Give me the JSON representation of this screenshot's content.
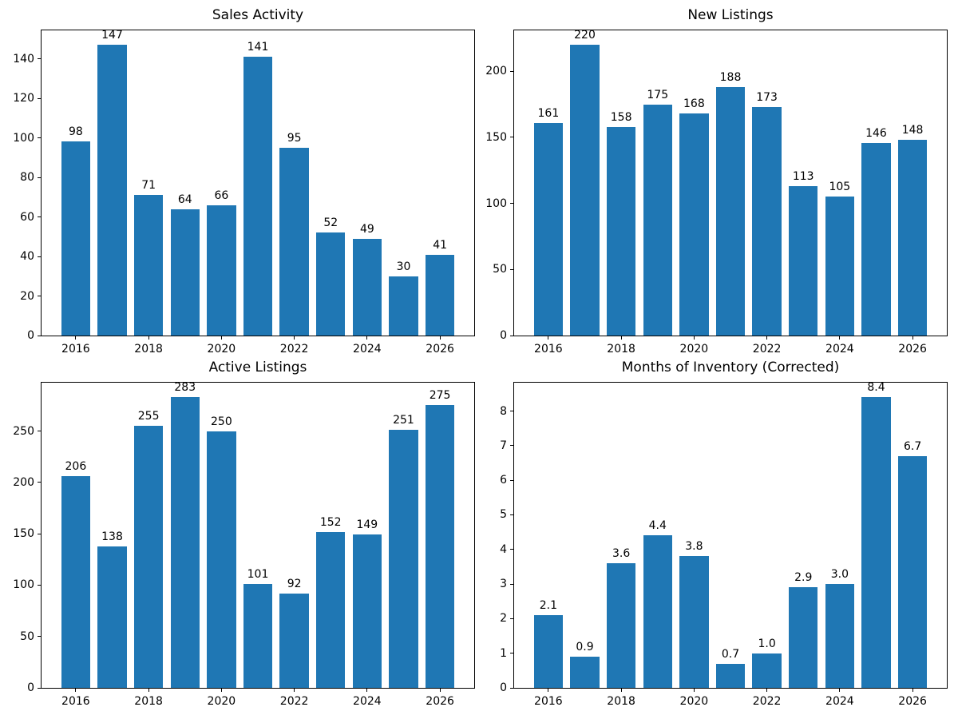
{
  "figure": {
    "background": "#ffffff",
    "bar_color": "#1f77b4",
    "text_color": "#000000"
  },
  "chart_data": [
    {
      "type": "bar",
      "title": "Sales Activity",
      "categories": [
        2016,
        2017,
        2018,
        2019,
        2020,
        2021,
        2022,
        2023,
        2024,
        2025,
        2026
      ],
      "values": [
        98,
        147,
        71,
        64,
        66,
        141,
        95,
        52,
        49,
        30,
        41
      ],
      "bar_labels": [
        "98",
        "147",
        "71",
        "64",
        "66",
        "141",
        "95",
        "52",
        "49",
        "30",
        "41"
      ],
      "bar_width": 0.8,
      "grid": false,
      "xlim": [
        2015.06,
        2026.94
      ],
      "ylim": [
        0,
        154.35
      ],
      "xticks": [
        2016,
        2018,
        2020,
        2022,
        2024,
        2026
      ],
      "yticks": [
        0,
        20,
        40,
        60,
        80,
        100,
        120,
        140
      ]
    },
    {
      "type": "bar",
      "title": "New Listings",
      "categories": [
        2016,
        2017,
        2018,
        2019,
        2020,
        2021,
        2022,
        2023,
        2024,
        2025,
        2026
      ],
      "values": [
        161,
        220,
        158,
        175,
        168,
        188,
        173,
        113,
        105,
        146,
        148
      ],
      "bar_labels": [
        "161",
        "220",
        "158",
        "175",
        "168",
        "188",
        "173",
        "113",
        "105",
        "146",
        "148"
      ],
      "bar_width": 0.8,
      "grid": false,
      "xlim": [
        2015.06,
        2026.94
      ],
      "ylim": [
        0,
        231
      ],
      "xticks": [
        2016,
        2018,
        2020,
        2022,
        2024,
        2026
      ],
      "yticks": [
        0,
        50,
        100,
        150,
        200
      ]
    },
    {
      "type": "bar",
      "title": "Active Listings",
      "categories": [
        2016,
        2017,
        2018,
        2019,
        2020,
        2021,
        2022,
        2023,
        2024,
        2025,
        2026
      ],
      "values": [
        206,
        138,
        255,
        283,
        250,
        101,
        92,
        152,
        149,
        251,
        275
      ],
      "bar_labels": [
        "206",
        "138",
        "255",
        "283",
        "250",
        "101",
        "92",
        "152",
        "149",
        "251",
        "275"
      ],
      "bar_width": 0.8,
      "grid": false,
      "xlim": [
        2015.06,
        2026.94
      ],
      "ylim": [
        0,
        297.15
      ],
      "xticks": [
        2016,
        2018,
        2020,
        2022,
        2024,
        2026
      ],
      "yticks": [
        0,
        50,
        100,
        150,
        200,
        250
      ]
    },
    {
      "type": "bar",
      "title": "Months of Inventory (Corrected)",
      "categories": [
        2016,
        2017,
        2018,
        2019,
        2020,
        2021,
        2022,
        2023,
        2024,
        2025,
        2026
      ],
      "values": [
        2.1,
        0.9,
        3.6,
        4.4,
        3.8,
        0.7,
        1.0,
        2.9,
        3.0,
        8.4,
        6.7
      ],
      "bar_labels": [
        "2.1",
        "0.9",
        "3.6",
        "4.4",
        "3.8",
        "0.7",
        "1.0",
        "2.9",
        "3.0",
        "8.4",
        "6.7"
      ],
      "bar_width": 0.8,
      "grid": false,
      "xlim": [
        2015.06,
        2026.94
      ],
      "ylim": [
        0,
        8.82
      ],
      "xticks": [
        2016,
        2018,
        2020,
        2022,
        2024,
        2026
      ],
      "yticks": [
        0,
        1,
        2,
        3,
        4,
        5,
        6,
        7,
        8
      ]
    }
  ]
}
